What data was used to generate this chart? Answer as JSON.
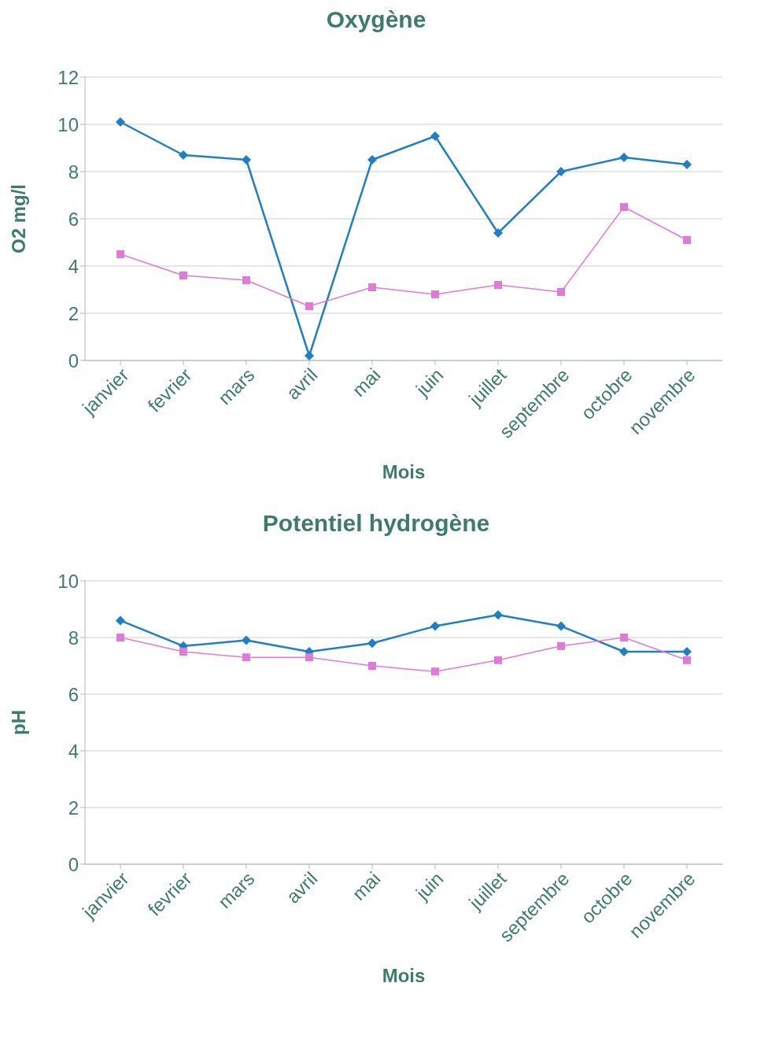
{
  "chart_data": [
    {
      "type": "line",
      "title": "Oxygène",
      "xlabel": "Mois",
      "ylabel": "O2 mg/l",
      "categories": [
        "janvier",
        "fevrier",
        "mars",
        "avril",
        "mai",
        "juin",
        "juillet",
        "septembre",
        "octobre",
        "novembre"
      ],
      "series": [
        {
          "color": "#1f7fc4",
          "marker": "diamond",
          "values": [
            10.1,
            8.7,
            8.5,
            0.2,
            8.5,
            9.5,
            5.4,
            8.0,
            8.6,
            8.3
          ]
        },
        {
          "color": "#e07ad8",
          "marker": "square",
          "values": [
            4.5,
            3.6,
            3.4,
            2.3,
            3.1,
            2.8,
            3.2,
            2.9,
            6.5,
            5.1
          ]
        }
      ],
      "ylim": [
        0,
        12
      ],
      "yticks": [
        0,
        2,
        4,
        6,
        8,
        10,
        12
      ],
      "grid": "y",
      "legend": false
    },
    {
      "type": "line",
      "title": "Potentiel hydrogène",
      "xlabel": "Mois",
      "ylabel": "pH",
      "categories": [
        "janvier",
        "fevrier",
        "mars",
        "avril",
        "mai",
        "juin",
        "juillet",
        "septembre",
        "octobre",
        "novembre"
      ],
      "series": [
        {
          "color": "#1f7fc4",
          "marker": "diamond",
          "values": [
            8.6,
            7.7,
            7.9,
            7.5,
            7.8,
            8.4,
            8.8,
            8.4,
            7.5,
            7.5
          ]
        },
        {
          "color": "#e07ad8",
          "marker": "square",
          "values": [
            8.0,
            7.5,
            7.3,
            7.3,
            7.0,
            6.8,
            7.2,
            7.7,
            8.0,
            7.2
          ]
        }
      ],
      "ylim": [
        0,
        10
      ],
      "yticks": [
        0,
        2,
        4,
        6,
        8,
        10
      ],
      "grid": "y",
      "legend": false
    }
  ]
}
